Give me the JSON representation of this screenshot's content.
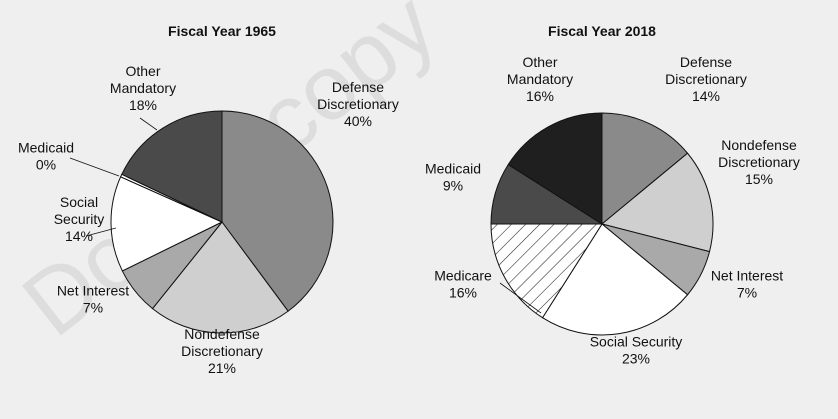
{
  "chart_data": [
    {
      "type": "pie",
      "title": "Fiscal Year 1965",
      "slices": [
        {
          "name": "Defense Discretionary",
          "label_lines": [
            "Defense",
            "Discretionary",
            "40%"
          ],
          "value": 40,
          "color": "#8a8a8a",
          "hatch": false
        },
        {
          "name": "Nondefense Discretionary",
          "label_lines": [
            "Nondefense",
            "Discretionary",
            "21%"
          ],
          "value": 21,
          "color": "#cfcfcf",
          "hatch": false
        },
        {
          "name": "Net Interest",
          "label_lines": [
            "Net Interest",
            "7%"
          ],
          "value": 7,
          "color": "#a9a9a9",
          "hatch": false
        },
        {
          "name": "Social Security",
          "label_lines": [
            "Social",
            "Security",
            "14%"
          ],
          "value": 14,
          "color": "#ffffff",
          "hatch": false
        },
        {
          "name": "Medicaid",
          "label_lines": [
            "Medicaid",
            "0%"
          ],
          "value": 0.4,
          "color": "#ffffff",
          "hatch": false
        },
        {
          "name": "Other Mandatory",
          "label_lines": [
            "Other",
            "Mandatory",
            "18%"
          ],
          "value": 18,
          "color": "#4a4a4a",
          "hatch": false
        }
      ]
    },
    {
      "type": "pie",
      "title": "Fiscal Year 2018",
      "slices": [
        {
          "name": "Defense Discretionary",
          "label_lines": [
            "Defense",
            "Discretionary",
            "14%"
          ],
          "value": 14,
          "color": "#8a8a8a",
          "hatch": false
        },
        {
          "name": "Nondefense Discretionary",
          "label_lines": [
            "Nondefense",
            "Discretionary",
            "15%"
          ],
          "value": 15,
          "color": "#cfcfcf",
          "hatch": false
        },
        {
          "name": "Net Interest",
          "label_lines": [
            "Net Interest",
            "7%"
          ],
          "value": 7,
          "color": "#a9a9a9",
          "hatch": false
        },
        {
          "name": "Social Security",
          "label_lines": [
            "Social Security",
            "23%"
          ],
          "value": 23,
          "color": "#ffffff",
          "hatch": false
        },
        {
          "name": "Medicare",
          "label_lines": [
            "Medicare",
            "16%"
          ],
          "value": 16,
          "color": "#ffffff",
          "hatch": true
        },
        {
          "name": "Medicaid",
          "label_lines": [
            "Medicaid",
            "9%"
          ],
          "value": 9,
          "color": "#4a4a4a",
          "hatch": false
        },
        {
          "name": "Other Mandatory",
          "label_lines": [
            "Other",
            "Mandatory",
            "16%"
          ],
          "value": 16,
          "color": "#1f1f1f",
          "hatch": false
        }
      ]
    }
  ],
  "watermark": "Do not copy"
}
